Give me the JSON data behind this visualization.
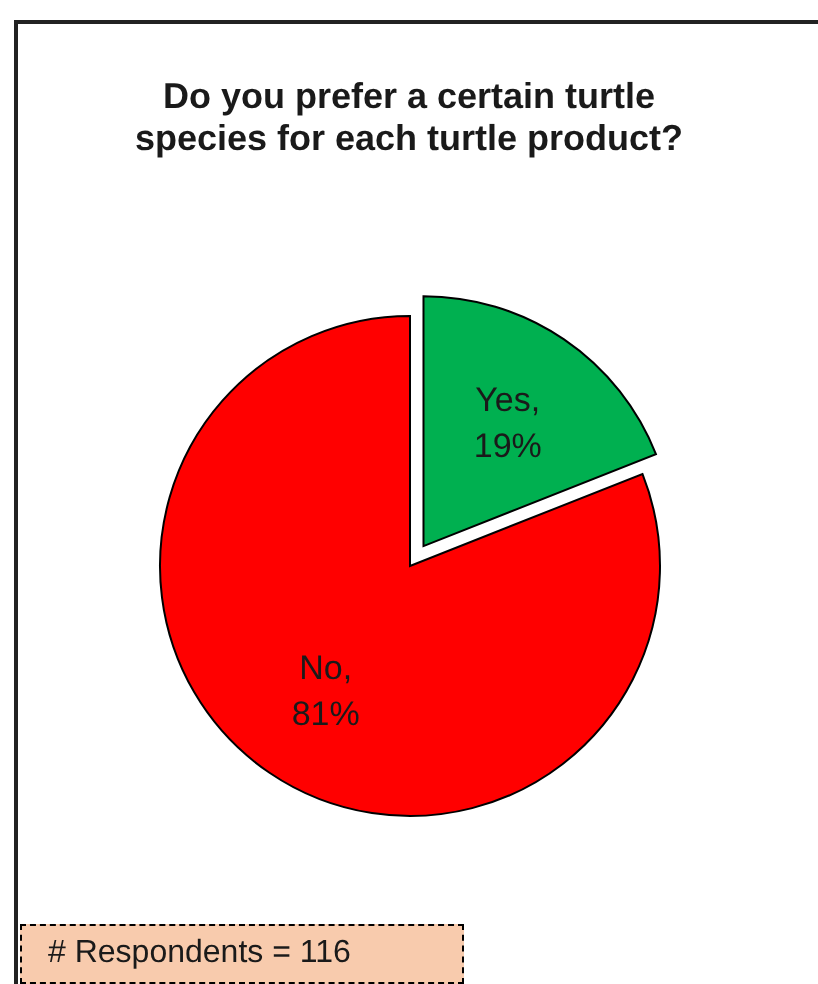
{
  "chart_data": {
    "type": "pie",
    "title": "Do you prefer a certain turtle species for each turtle product?",
    "categories": [
      null,
      null
    ],
    "values": [
      19,
      81
    ],
    "colors": [
      "#00b050",
      "#ff0000"
    ],
    "value_labels": [
      "Yes, 19%",
      "No, 81%"
    ],
    "annotations": [
      "# Respondents = 116"
    ]
  }
}
